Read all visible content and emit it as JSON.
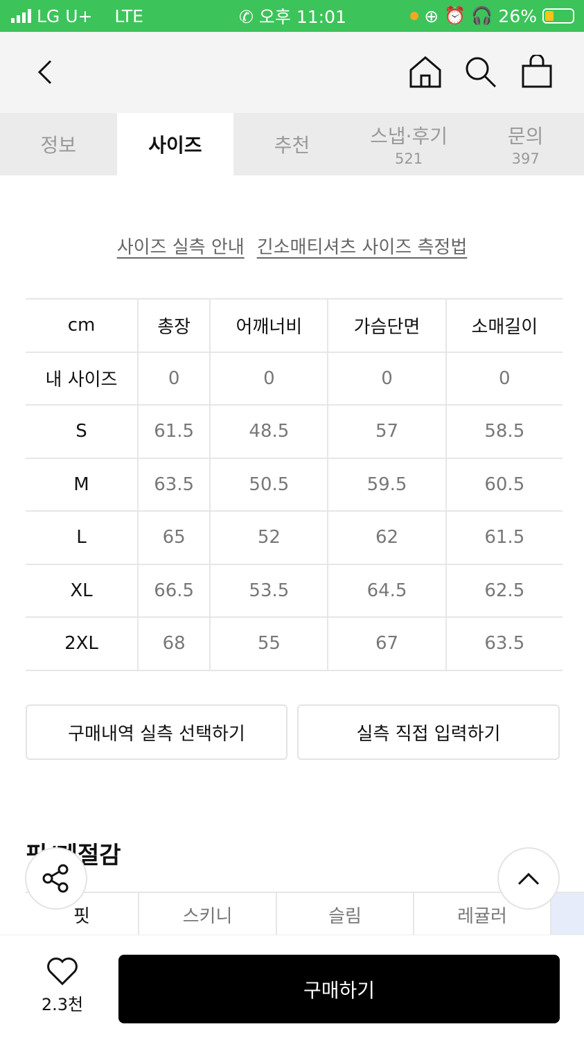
{
  "status": {
    "carrier": "LG U+",
    "network": "LTE",
    "time": "오후 11:01",
    "battery": "26%"
  },
  "tabs": [
    {
      "label": "정보"
    },
    {
      "label": "사이즈"
    },
    {
      "label": "추천"
    },
    {
      "label": "스냅·후기",
      "count": "521"
    },
    {
      "label": "문의",
      "count": "397"
    }
  ],
  "links": {
    "size_guide": "사이즈 실측 안내",
    "measure_method": "긴소매티셔츠 사이즈 측정법"
  },
  "size_table": {
    "headers": [
      "cm",
      "총장",
      "어깨너비",
      "가슴단면",
      "소매길이"
    ],
    "rows": [
      [
        "내 사이즈",
        "0",
        "0",
        "0",
        "0"
      ],
      [
        "S",
        "61.5",
        "48.5",
        "57",
        "58.5"
      ],
      [
        "M",
        "63.5",
        "50.5",
        "59.5",
        "60.5"
      ],
      [
        "L",
        "65",
        "52",
        "62",
        "61.5"
      ],
      [
        "XL",
        "66.5",
        "53.5",
        "64.5",
        "62.5"
      ],
      [
        "2XL",
        "68",
        "55",
        "67",
        "63.5"
      ]
    ]
  },
  "buttons": {
    "select_purchase": "구매내역 실측 선택하기",
    "manual_input": "실측 직접 입력하기"
  },
  "fit": {
    "title": "핏/계절감",
    "row": [
      "핏",
      "스키니",
      "슬림",
      "레귤러"
    ]
  },
  "bottom": {
    "likes": "2.3천",
    "buy": "구매하기"
  },
  "colors": {
    "status_bar": "#3cc35a",
    "buy_button": "#000000"
  }
}
